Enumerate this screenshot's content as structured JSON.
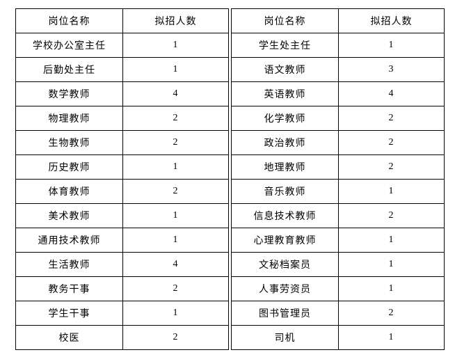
{
  "colors": {
    "background": "#ffffff",
    "border": "#000000",
    "text": "#000000"
  },
  "tables": [
    {
      "name": "recruitment-table-left",
      "headers": [
        "岗位名称",
        "拟招人数"
      ],
      "rows": [
        [
          "学校办公室主任",
          "1"
        ],
        [
          "后勤处主任",
          "1"
        ],
        [
          "数学教师",
          "4"
        ],
        [
          "物理教师",
          "2"
        ],
        [
          "生物教师",
          "2"
        ],
        [
          "历史教师",
          "1"
        ],
        [
          "体育教师",
          "2"
        ],
        [
          "美术教师",
          "1"
        ],
        [
          "通用技术教师",
          "1"
        ],
        [
          "生活教师",
          "4"
        ],
        [
          "教务干事",
          "2"
        ],
        [
          "学生干事",
          "1"
        ],
        [
          "校医",
          "2"
        ]
      ]
    },
    {
      "name": "recruitment-table-right",
      "headers": [
        "岗位名称",
        "拟招人数"
      ],
      "rows": [
        [
          "学生处主任",
          "1"
        ],
        [
          "语文教师",
          "3"
        ],
        [
          "英语教师",
          "4"
        ],
        [
          "化学教师",
          "2"
        ],
        [
          "政治教师",
          "2"
        ],
        [
          "地理教师",
          "2"
        ],
        [
          "音乐教师",
          "1"
        ],
        [
          "信息技术教师",
          "2"
        ],
        [
          "心理教育教师",
          "1"
        ],
        [
          "文秘档案员",
          "1"
        ],
        [
          "人事劳资员",
          "1"
        ],
        [
          "图书管理员",
          "2"
        ],
        [
          "司机",
          "1"
        ]
      ]
    }
  ]
}
